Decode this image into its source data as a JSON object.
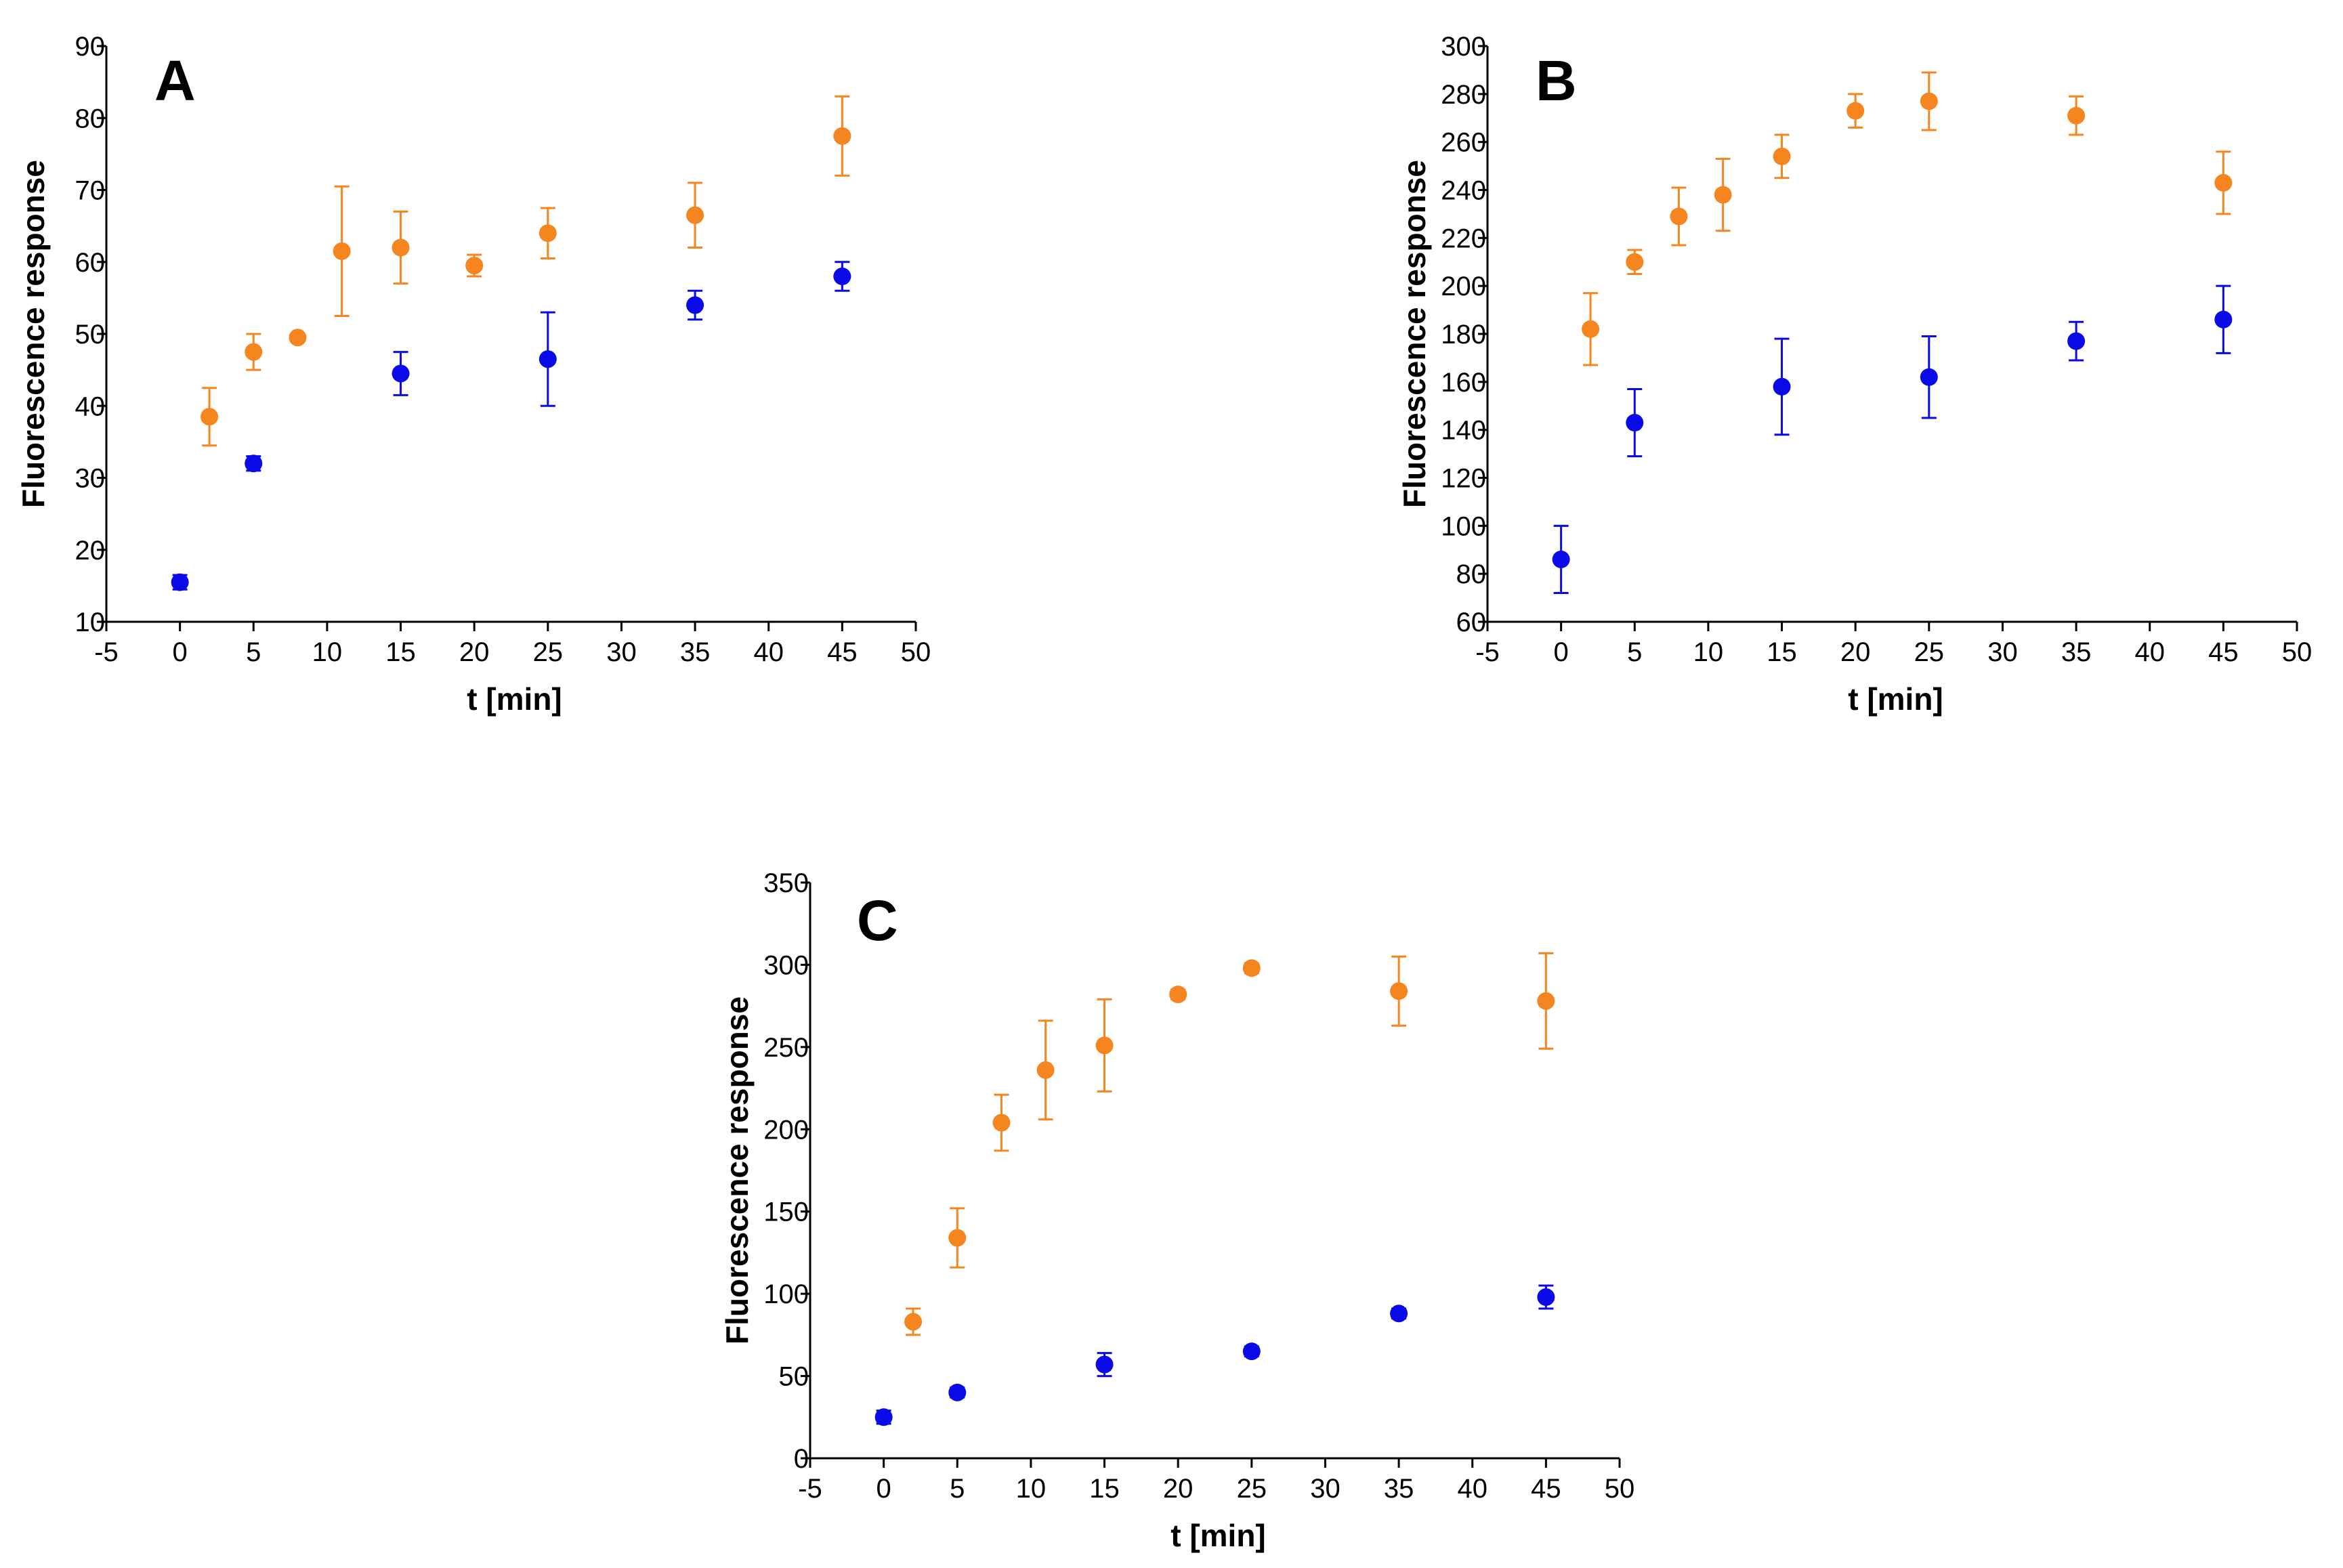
{
  "colors": {
    "series_orange": "#F5861F",
    "series_blue": "#0A0AE8",
    "axis": "#000000"
  },
  "chart_data": [
    {
      "type": "scatter",
      "panel_label": "A",
      "xlabel": "t [min]",
      "ylabel": "Fluorescence response",
      "xlim": [
        -5,
        50
      ],
      "ylim": [
        10,
        90
      ],
      "xticks": [
        -5,
        0,
        5,
        10,
        15,
        20,
        25,
        30,
        35,
        40,
        45,
        50
      ],
      "yticks": [
        10,
        20,
        30,
        40,
        50,
        60,
        70,
        80,
        90
      ],
      "series": [
        {
          "name": "orange",
          "color": "#F5861F",
          "x": [
            2,
            5,
            8,
            11,
            15,
            20,
            25,
            35,
            45
          ],
          "y": [
            38.5,
            47.5,
            49.5,
            61.5,
            62,
            59.5,
            64,
            66.5,
            77.5
          ],
          "err": [
            4,
            2.5,
            0.5,
            9,
            5,
            1.5,
            3.5,
            4.5,
            5.5
          ]
        },
        {
          "name": "blue",
          "color": "#0A0AE8",
          "x": [
            0,
            5,
            15,
            25,
            35,
            45
          ],
          "y": [
            15.5,
            32,
            44.5,
            46.5,
            54,
            58
          ],
          "err": [
            1,
            1,
            3,
            6.5,
            2,
            2
          ]
        }
      ]
    },
    {
      "type": "scatter",
      "panel_label": "B",
      "xlabel": "t [min]",
      "ylabel": "Fluorescence response",
      "xlim": [
        -5,
        50
      ],
      "ylim": [
        60,
        300
      ],
      "xticks": [
        -5,
        0,
        5,
        10,
        15,
        20,
        25,
        30,
        35,
        40,
        45,
        50
      ],
      "yticks": [
        60,
        80,
        100,
        120,
        140,
        160,
        180,
        200,
        220,
        240,
        260,
        280,
        300
      ],
      "series": [
        {
          "name": "orange",
          "color": "#F5861F",
          "x": [
            2,
            5,
            8,
            11,
            15,
            20,
            25,
            35,
            45
          ],
          "y": [
            182,
            210,
            229,
            238,
            254,
            273,
            277,
            271,
            243
          ],
          "err": [
            15,
            5,
            12,
            15,
            9,
            7,
            12,
            8,
            13
          ]
        },
        {
          "name": "blue",
          "color": "#0A0AE8",
          "x": [
            0,
            5,
            15,
            25,
            35,
            45
          ],
          "y": [
            86,
            143,
            158,
            162,
            177,
            186
          ],
          "err": [
            14,
            14,
            20,
            17,
            8,
            14
          ]
        }
      ]
    },
    {
      "type": "scatter",
      "panel_label": "C",
      "xlabel": "t [min]",
      "ylabel": "Fluorescence response",
      "xlim": [
        -5,
        50
      ],
      "ylim": [
        0,
        350
      ],
      "xticks": [
        -5,
        0,
        5,
        10,
        15,
        20,
        25,
        30,
        35,
        40,
        45,
        50
      ],
      "yticks": [
        0,
        50,
        100,
        150,
        200,
        250,
        300,
        350
      ],
      "series": [
        {
          "name": "orange",
          "color": "#F5861F",
          "x": [
            2,
            5,
            8,
            11,
            15,
            20,
            25,
            35,
            45
          ],
          "y": [
            83,
            134,
            204,
            236,
            251,
            282,
            298,
            284,
            278
          ],
          "err": [
            8,
            18,
            17,
            30,
            28,
            3,
            3,
            21,
            29
          ]
        },
        {
          "name": "blue",
          "color": "#0A0AE8",
          "x": [
            0,
            5,
            15,
            25,
            35,
            45
          ],
          "y": [
            25,
            40,
            57,
            65,
            88,
            98
          ],
          "err": [
            4,
            3,
            7,
            3,
            3,
            7
          ]
        }
      ]
    }
  ]
}
